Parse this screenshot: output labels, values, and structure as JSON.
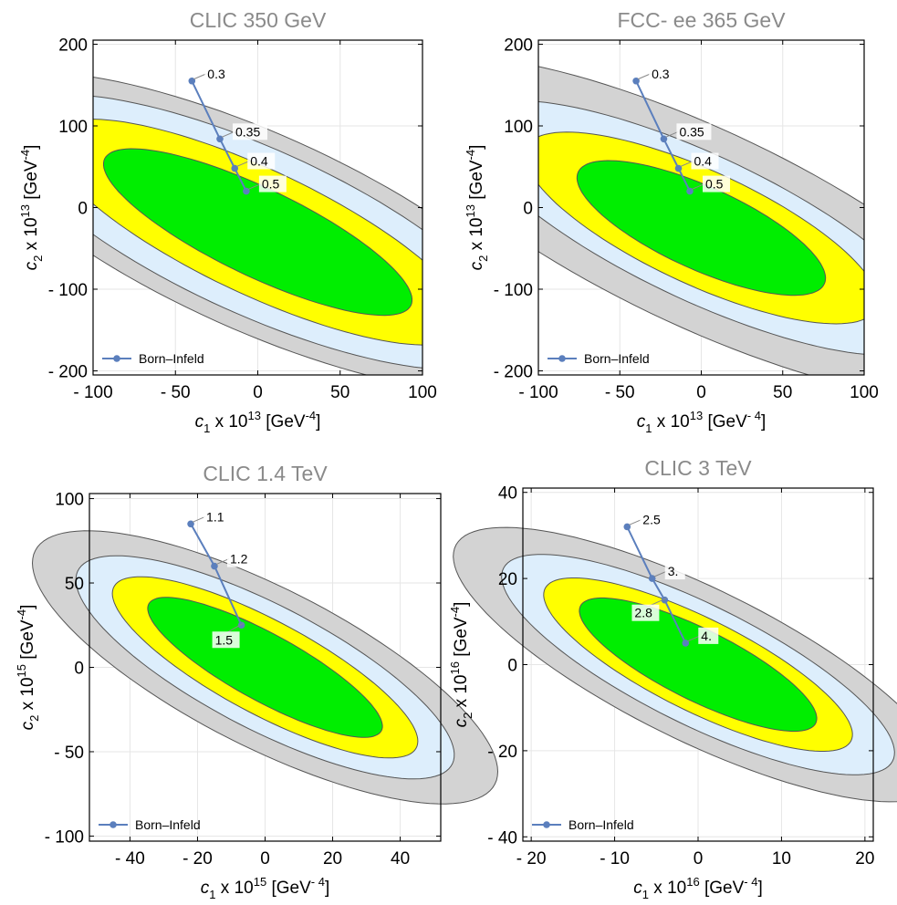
{
  "chart_data": [
    {
      "type": "contour",
      "title": "CLIC 350 GeV",
      "xlabel": {
        "var": "c",
        "sub": "1",
        "mid": " x 10",
        "exp": "13",
        "unit": " [GeV",
        "unit_exp": "-4",
        "close": "]"
      },
      "ylabel": {
        "var": "c",
        "sub": "2",
        "mid": " x 10",
        "exp": "13",
        "unit": " [GeV",
        "unit_exp": "-4",
        "close": "]"
      },
      "xlim": [
        -100,
        100
      ],
      "ylim": [
        -205,
        205
      ],
      "xticks": [
        -100,
        -50,
        0,
        50,
        100
      ],
      "xtick_labels": [
        "- 100",
        "- 50",
        "0",
        "50",
        "100"
      ],
      "yticks": [
        -200,
        -100,
        0,
        100,
        200
      ],
      "ytick_labels": [
        "- 200",
        "- 100",
        "0",
        "100",
        "200"
      ],
      "ellipses": {
        "center": [
          0,
          -30
        ],
        "angle_deg": -48,
        "axes": [
          [
            132,
            42
          ],
          [
            178,
            60
          ],
          [
            215,
            80
          ],
          [
            250,
            95
          ]
        ],
        "clip_to_frame": true
      },
      "legend": {
        "label": "Born–Infeld",
        "placement": "bottom-left"
      },
      "series": [
        {
          "name": "Born–Infeld",
          "x": [
            -40,
            -23,
            -14,
            -7
          ],
          "y": [
            155,
            84,
            48,
            20
          ],
          "labels": [
            "0.3",
            "0.35",
            "0.4",
            "0.5"
          ],
          "label_offsets": [
            [
              16,
              -8
            ],
            [
              16,
              -8
            ],
            [
              16,
              -8
            ],
            [
              16,
              -8
            ]
          ]
        }
      ]
    },
    {
      "type": "contour",
      "title": "FCC- ee 365 GeV",
      "xlabel": {
        "var": "c",
        "sub": "1",
        "mid": " x 10",
        "exp": "13",
        "unit": " [GeV",
        "unit_exp": "- 4",
        "close": "]"
      },
      "ylabel": {
        "var": "c",
        "sub": "2",
        "mid": " x 10",
        "exp": "13",
        "unit": " [GeV",
        "unit_exp": "-4",
        "close": "]"
      },
      "xlim": [
        -100,
        100
      ],
      "ylim": [
        -205,
        205
      ],
      "xticks": [
        -100,
        -50,
        0,
        50,
        100
      ],
      "xtick_labels": [
        "- 100",
        "- 50",
        "0",
        "50",
        "100"
      ],
      "yticks": [
        -200,
        -100,
        0,
        100,
        200
      ],
      "ytick_labels": [
        "- 200",
        "- 100",
        "0",
        "100",
        "200"
      ],
      "ellipses": {
        "center": [
          0,
          -25
        ],
        "angle_deg": -48,
        "axes": [
          [
            105,
            40
          ],
          [
            150,
            55
          ],
          [
            200,
            70
          ],
          [
            270,
            95
          ]
        ],
        "clip_to_frame": true
      },
      "legend": {
        "label": "Born–Infeld",
        "placement": "bottom-left"
      },
      "series": [
        {
          "name": "Born–Infeld",
          "x": [
            -40,
            -23,
            -14,
            -7
          ],
          "y": [
            155,
            84,
            48,
            20
          ],
          "labels": [
            "0.3",
            "0.35",
            "0.4",
            "0.5"
          ],
          "label_offsets": [
            [
              16,
              -8
            ],
            [
              16,
              -8
            ],
            [
              16,
              -8
            ],
            [
              16,
              -8
            ]
          ]
        }
      ]
    },
    {
      "type": "contour",
      "title": "CLIC 1.4 TeV",
      "xlabel": {
        "var": "c",
        "sub": "1",
        "mid": " x 10",
        "exp": "15",
        "unit": " [GeV",
        "unit_exp": "- 4",
        "close": "]"
      },
      "ylabel": {
        "var": "c",
        "sub": "2",
        "mid": " x 10",
        "exp": "15",
        "unit": " [GeV",
        "unit_exp": "-4",
        "close": "]"
      },
      "xlim": [
        -52,
        52
      ],
      "ylim": [
        -103,
        103
      ],
      "xticks": [
        -40,
        -20,
        0,
        20,
        40
      ],
      "xtick_labels": [
        "- 40",
        "- 20",
        "0",
        "20",
        "40"
      ],
      "yticks": [
        -100,
        -50,
        0,
        50,
        100
      ],
      "ytick_labels": [
        "- 100",
        "- 50",
        "0",
        "50",
        "100"
      ],
      "ellipses": {
        "center": [
          0,
          0
        ],
        "angle_deg": -51,
        "axes": [
          [
            52,
            15
          ],
          [
            67,
            21
          ],
          [
            82,
            28
          ],
          [
            100,
            36
          ]
        ],
        "clip_to_frame": false
      },
      "legend": {
        "label": "Born–Infeld",
        "placement": "bottom-left"
      },
      "series": [
        {
          "name": "Born–Infeld",
          "x": [
            -22,
            -15,
            -7
          ],
          "y": [
            85,
            60,
            25
          ],
          "labels": [
            "1.1",
            "1.2",
            "1.5"
          ],
          "label_offsets": [
            [
              16,
              -8
            ],
            [
              16,
              -8
            ],
            [
              -30,
              16
            ]
          ]
        }
      ]
    },
    {
      "type": "contour",
      "title": "CLIC 3 TeV",
      "xlabel": {
        "var": "c",
        "sub": "1",
        "mid": " x 10",
        "exp": "16",
        "unit": " [GeV",
        "unit_exp": "- 4",
        "close": "]"
      },
      "ylabel": {
        "var": "c",
        "sub": "2",
        "mid": " x 10",
        "exp": "16",
        "unit": " [GeV",
        "unit_exp": "-4",
        "close": "]"
      },
      "xlim": [
        -21,
        21
      ],
      "ylim": [
        -41,
        41
      ],
      "xticks": [
        -20,
        -10,
        0,
        10,
        20
      ],
      "xtick_labels": [
        "- 20",
        "- 10",
        "0",
        "10",
        "20"
      ],
      "yticks": [
        -40,
        -20,
        0,
        20,
        40
      ],
      "ytick_labels": [
        "- 40",
        "- 20",
        "0",
        "20",
        "40"
      ],
      "ellipses": {
        "center": [
          0,
          0
        ],
        "angle_deg": -48,
        "axes": [
          [
            20,
            6.5
          ],
          [
            26,
            8.5
          ],
          [
            33,
            11
          ],
          [
            41,
            14
          ]
        ],
        "clip_to_frame": false
      },
      "legend": {
        "label": "Born–Infeld",
        "placement": "bottom-left"
      },
      "series": [
        {
          "name": "Born–Infeld",
          "x": [
            -8.5,
            -5.5,
            -4,
            -1.5
          ],
          "y": [
            32,
            20,
            15,
            5
          ],
          "labels": [
            "2.5",
            "3.",
            "2.8",
            "4."
          ],
          "label_offsets": [
            [
              16,
              -8
            ],
            [
              16,
              -8
            ],
            [
              -34,
              14
            ],
            [
              16,
              -8
            ]
          ]
        }
      ]
    }
  ],
  "colors": {
    "fill": [
      "#00ee00",
      "#ffff00",
      "#ddeefc",
      "#d3d3d3"
    ],
    "contour_line": "#555555",
    "series_line": "#5b7fbd",
    "point": "#5b7fbd",
    "frame": "#000000",
    "grid": "#e6e6e6",
    "label_box": "#ffffff"
  }
}
